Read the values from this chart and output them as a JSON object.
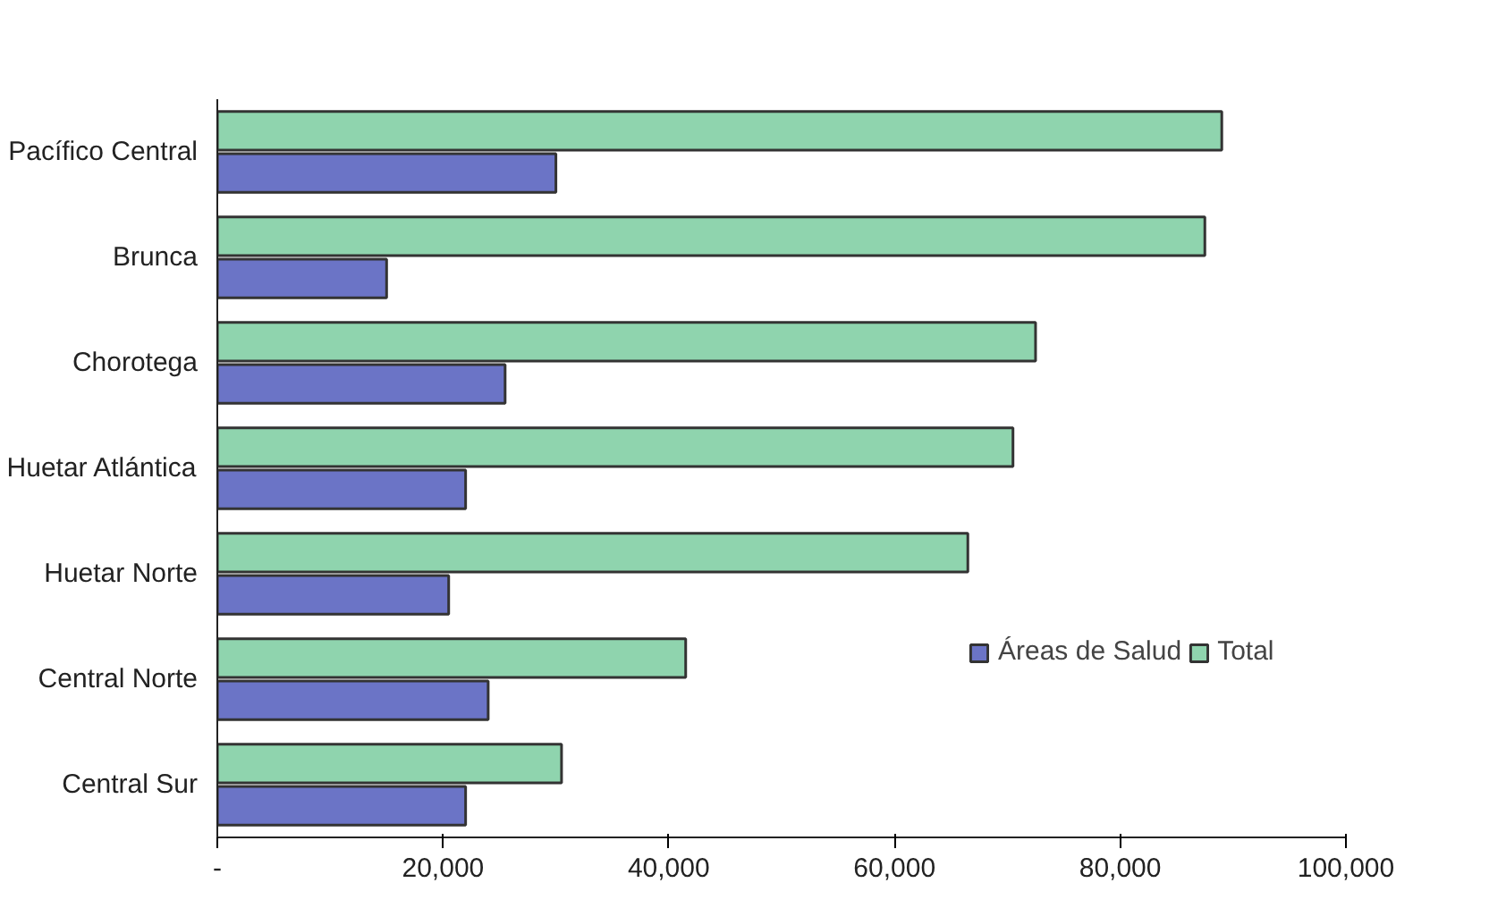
{
  "chart_data": {
    "type": "bar",
    "orientation": "horizontal",
    "categories": [
      "Pacífico Central",
      "Brunca",
      "Chorotega",
      "Huetar Atlántica",
      "Huetar Norte",
      "Central Norte",
      "Central Sur"
    ],
    "series": [
      {
        "name": "Áreas de Salud",
        "color": "#6b74c6",
        "values": [
          30000,
          15000,
          25500,
          22000,
          20500,
          24000,
          22000
        ]
      },
      {
        "name": "Total",
        "color": "#8fd4ae",
        "values": [
          89000,
          87500,
          72500,
          70500,
          66500,
          41500,
          30500
        ]
      }
    ],
    "xlim": [
      0,
      100000
    ],
    "xticks": [
      {
        "value": 0,
        "label": "-"
      },
      {
        "value": 20000,
        "label": "20,000"
      },
      {
        "value": 40000,
        "label": "40,000"
      },
      {
        "value": 60000,
        "label": "60,000"
      },
      {
        "value": 80000,
        "label": "80,000"
      },
      {
        "value": 100000,
        "label": "100,000"
      }
    ],
    "grid": false,
    "legend": "right"
  }
}
